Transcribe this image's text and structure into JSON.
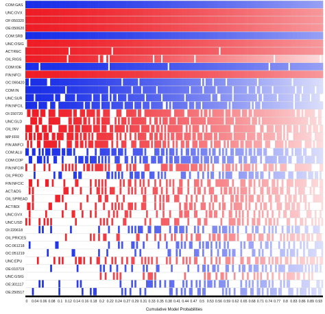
{
  "chart_data": {
    "type": "heatmap",
    "title": "",
    "xlabel": "Cumulative Model Probabilities",
    "ylabel": "",
    "xlim": [
      0,
      0.95
    ],
    "x_ticks": [
      "0",
      "0.04",
      "0.06",
      "0.08",
      "0.1",
      "0.12",
      "0.14",
      "0.16",
      "0.18",
      "0.2",
      "0.22",
      "0.24",
      "0.27",
      "0.29",
      "0.31",
      "0.33",
      "0.35",
      "0.38",
      "0.41",
      "0.44",
      "0.47",
      "0.5",
      "0.53",
      "0.56",
      "0.59",
      "0.62",
      "0.65",
      "0.68",
      "0.71",
      "0.74",
      "0.77",
      "0.8",
      "0.83",
      "0.86",
      "0.89",
      "0.93"
    ],
    "variables": [
      "COM:GAS",
      "UNC:OVX",
      "OF:050320",
      "OE:050620",
      "COM:SRB",
      "UNC:OSIG",
      "ACT:REC",
      "OIL:RIGS",
      "COM:IOE",
      "FIN:NFCI",
      "OC:090420",
      "COM:IN",
      "UNC:SUR",
      "FIN:NFCIL",
      "OI:150720",
      "UNC:GLD",
      "OIL:INV",
      "MP:FFR",
      "FIN:ANFCI",
      "COM:ALU",
      "COM:COP",
      "FIN:NFCIR",
      "OIL:PROD",
      "FIN:NFCIC",
      "ACT:ADS",
      "OIL:SPREAD",
      "ACT:BDI",
      "UNC:GVX",
      "UNC:USD",
      "OI:220618",
      "OIL:PRICES",
      "OC:061218",
      "OC:051219",
      "UNC:EPU",
      "OE:010719",
      "UNC:GSIG",
      "OE:301117",
      "OE:250517"
    ],
    "sign": [
      -1,
      1,
      1,
      1,
      -1,
      1,
      1,
      1,
      -1,
      1,
      -1,
      -1,
      -1,
      -1,
      1,
      1,
      1,
      1,
      1,
      -1,
      -1,
      1,
      -1,
      1,
      1,
      1,
      1,
      1,
      1,
      -1,
      1,
      -1,
      -1,
      1,
      -1,
      1,
      -1,
      -1
    ],
    "inclusion_probability": [
      1.0,
      1.0,
      1.0,
      1.0,
      1.0,
      0.97,
      0.96,
      0.95,
      0.97,
      1.0,
      0.9,
      0.88,
      0.87,
      0.86,
      0.75,
      0.72,
      0.68,
      0.62,
      0.6,
      0.55,
      0.5,
      0.45,
      0.38,
      0.35,
      0.32,
      0.3,
      0.28,
      0.27,
      0.26,
      0.25,
      0.24,
      0.23,
      0.22,
      0.21,
      0.2,
      0.19,
      0.18,
      0.17
    ],
    "grid": true,
    "legend": "none",
    "colors": {
      "positive": "#ee1c25",
      "negative": "#1a2ee8",
      "absent": "#ffffff",
      "grid": "#d9d9d9"
    }
  }
}
